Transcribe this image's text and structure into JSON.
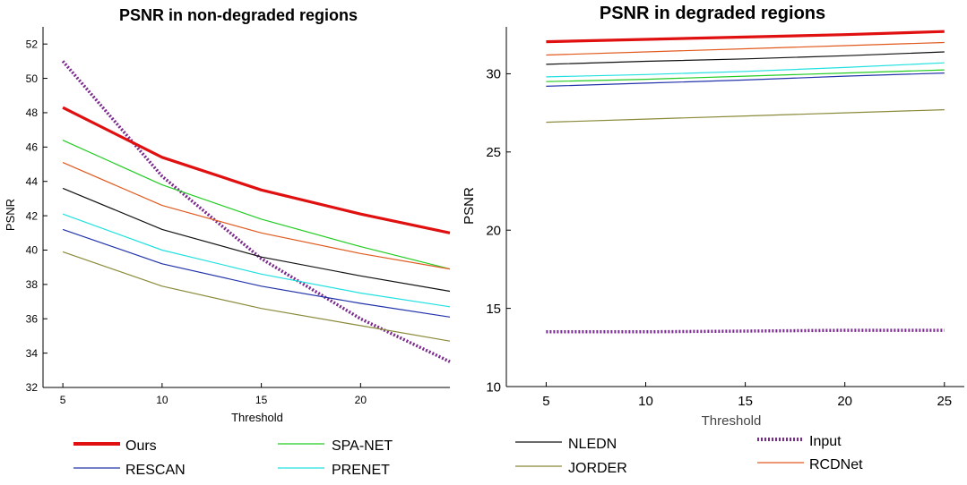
{
  "chart_data": [
    {
      "type": "line",
      "title": "PSNR in non-degraded regions",
      "xlabel": "Threshold",
      "ylabel": "PSNR",
      "xlim": [
        4,
        24.5
      ],
      "ylim": [
        32,
        53
      ],
      "xticks": [
        5,
        10,
        15,
        20
      ],
      "yticks": [
        32,
        34,
        36,
        38,
        40,
        42,
        44,
        46,
        48,
        50,
        52
      ],
      "grid": false,
      "x": [
        5,
        10,
        15,
        20,
        24.5
      ],
      "series": [
        {
          "name": "Input",
          "color": "#7a2a8c",
          "values": [
            51.0,
            44.3,
            39.5,
            36.0,
            33.5
          ]
        },
        {
          "name": "SPA-NET",
          "color": "#22cc22",
          "values": [
            46.4,
            43.8,
            41.8,
            40.2,
            38.9
          ]
        },
        {
          "name": "RCDNet",
          "color": "#e05a1e",
          "values": [
            45.1,
            42.6,
            41.0,
            39.8,
            38.9
          ]
        },
        {
          "name": "NLEDN",
          "color": "#111111",
          "values": [
            43.6,
            41.2,
            39.6,
            38.5,
            37.6
          ]
        },
        {
          "name": "PRENET",
          "color": "#22e0e0",
          "values": [
            42.1,
            40.0,
            38.6,
            37.5,
            36.7
          ]
        },
        {
          "name": "RESCAN",
          "color": "#2233aa",
          "values": [
            41.2,
            39.2,
            37.9,
            36.9,
            36.1
          ]
        },
        {
          "name": "JORDER",
          "color": "#8a8a3a",
          "values": [
            39.9,
            37.9,
            36.6,
            35.6,
            34.7
          ]
        },
        {
          "name": "Ours",
          "color": "#e01010",
          "values": [
            48.3,
            45.4,
            43.5,
            42.1,
            41.0
          ]
        }
      ]
    },
    {
      "type": "line",
      "title": "PSNR in degraded regions",
      "xlabel": "Threshold",
      "ylabel": "PSNR",
      "xlim": [
        3,
        26
      ],
      "ylim": [
        10,
        33
      ],
      "xticks": [
        5,
        10,
        15,
        20,
        25
      ],
      "yticks": [
        10,
        15,
        20,
        25,
        30
      ],
      "grid": false,
      "x": [
        5,
        10,
        15,
        20,
        25
      ],
      "series": [
        {
          "name": "Input",
          "color": "#7a2a8c",
          "values": [
            13.5,
            13.5,
            13.55,
            13.6,
            13.6
          ]
        },
        {
          "name": "JORDER",
          "color": "#8a8a3a",
          "values": [
            26.9,
            27.1,
            27.3,
            27.5,
            27.7
          ]
        },
        {
          "name": "RESCAN",
          "color": "#2233aa",
          "values": [
            29.2,
            29.4,
            29.6,
            29.85,
            30.05
          ]
        },
        {
          "name": "SPA-NET",
          "color": "#22cc22",
          "values": [
            29.5,
            29.65,
            29.85,
            30.05,
            30.25
          ]
        },
        {
          "name": "PRENET",
          "color": "#22e0e0",
          "values": [
            29.8,
            29.95,
            30.15,
            30.4,
            30.7
          ]
        },
        {
          "name": "NLEDN",
          "color": "#111111",
          "values": [
            30.6,
            30.8,
            30.95,
            31.15,
            31.4
          ]
        },
        {
          "name": "RCDNet",
          "color": "#e05a1e",
          "values": [
            31.2,
            31.4,
            31.6,
            31.8,
            32.0
          ]
        },
        {
          "name": "Ours",
          "color": "#e01010",
          "values": [
            32.05,
            32.2,
            32.35,
            32.5,
            32.7
          ]
        }
      ]
    }
  ],
  "legend": {
    "left": [
      {
        "name": "Ours",
        "color": "#e01010"
      },
      {
        "name": "SPA-NET",
        "color": "#22cc22"
      },
      {
        "name": "RESCAN",
        "color": "#2233aa"
      },
      {
        "name": "PRENET",
        "color": "#22e0e0"
      }
    ],
    "right": [
      {
        "name": "NLEDN",
        "color": "#111111"
      },
      {
        "name": "Input",
        "color": "#7a2a8c"
      },
      {
        "name": "JORDER",
        "color": "#8a8a3a"
      },
      {
        "name": "RCDNet",
        "color": "#e05a1e"
      }
    ]
  }
}
